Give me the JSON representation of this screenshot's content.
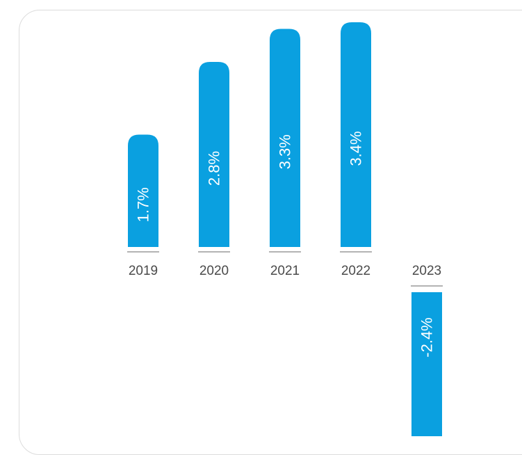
{
  "chart_data": {
    "type": "bar",
    "orientation": "vertical",
    "categories": [
      "2019",
      "2020",
      "2021",
      "2022",
      "2023"
    ],
    "values": [
      1.7,
      2.8,
      3.3,
      3.4,
      -2.4
    ],
    "value_labels": [
      "1.7%",
      "2.8%",
      "3.3%",
      "3.4%",
      "-2.4%"
    ],
    "title": "",
    "xlabel": "",
    "ylabel": "",
    "ylim": [
      -2.7,
      3.6
    ],
    "grid": false,
    "legend": "none",
    "bar_color": "#0aa0e0"
  }
}
